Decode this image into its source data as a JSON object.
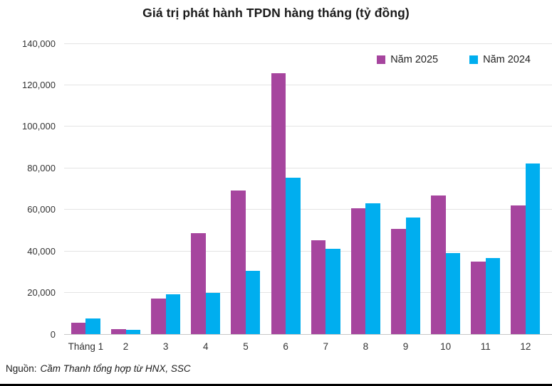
{
  "title": "Giá trị phát hành TPDN hàng tháng (tỷ đồng)",
  "legend": {
    "items": [
      {
        "label": "Năm 2025",
        "color": "#A6459E"
      },
      {
        "label": "Năm 2024",
        "color": "#00AEEF"
      }
    ]
  },
  "footer": {
    "prefix": "Nguồn:",
    "source": "Cầm Thanh tổng hợp từ HNX, SSC"
  },
  "chart_data": {
    "type": "bar",
    "title": "Giá trị phát hành TPDN hàng tháng (tỷ đồng)",
    "categories": [
      "Tháng 1",
      "2",
      "3",
      "4",
      "5",
      "6",
      "7",
      "8",
      "9",
      "10",
      "11",
      "12"
    ],
    "series": [
      {
        "name": "Năm 2025",
        "color": "#A6459E",
        "values": [
          5500,
          2300,
          17200,
          48500,
          69000,
          125500,
          45200,
          60500,
          50700,
          66900,
          35000,
          62000
        ]
      },
      {
        "name": "Năm 2024",
        "color": "#00AEEF",
        "values": [
          7700,
          2200,
          19200,
          19900,
          30300,
          75200,
          41000,
          63000,
          56100,
          39000,
          36500,
          82000
        ]
      }
    ],
    "xlabel": "",
    "ylabel": "",
    "ylim": [
      0,
      140000
    ],
    "ytick_interval": 20000,
    "ytick_labels": [
      "0",
      "20,000",
      "40,000",
      "60,000",
      "80,000",
      "100,000",
      "120,000",
      "140,000"
    ],
    "grid": true,
    "legend_position": "top-right"
  }
}
